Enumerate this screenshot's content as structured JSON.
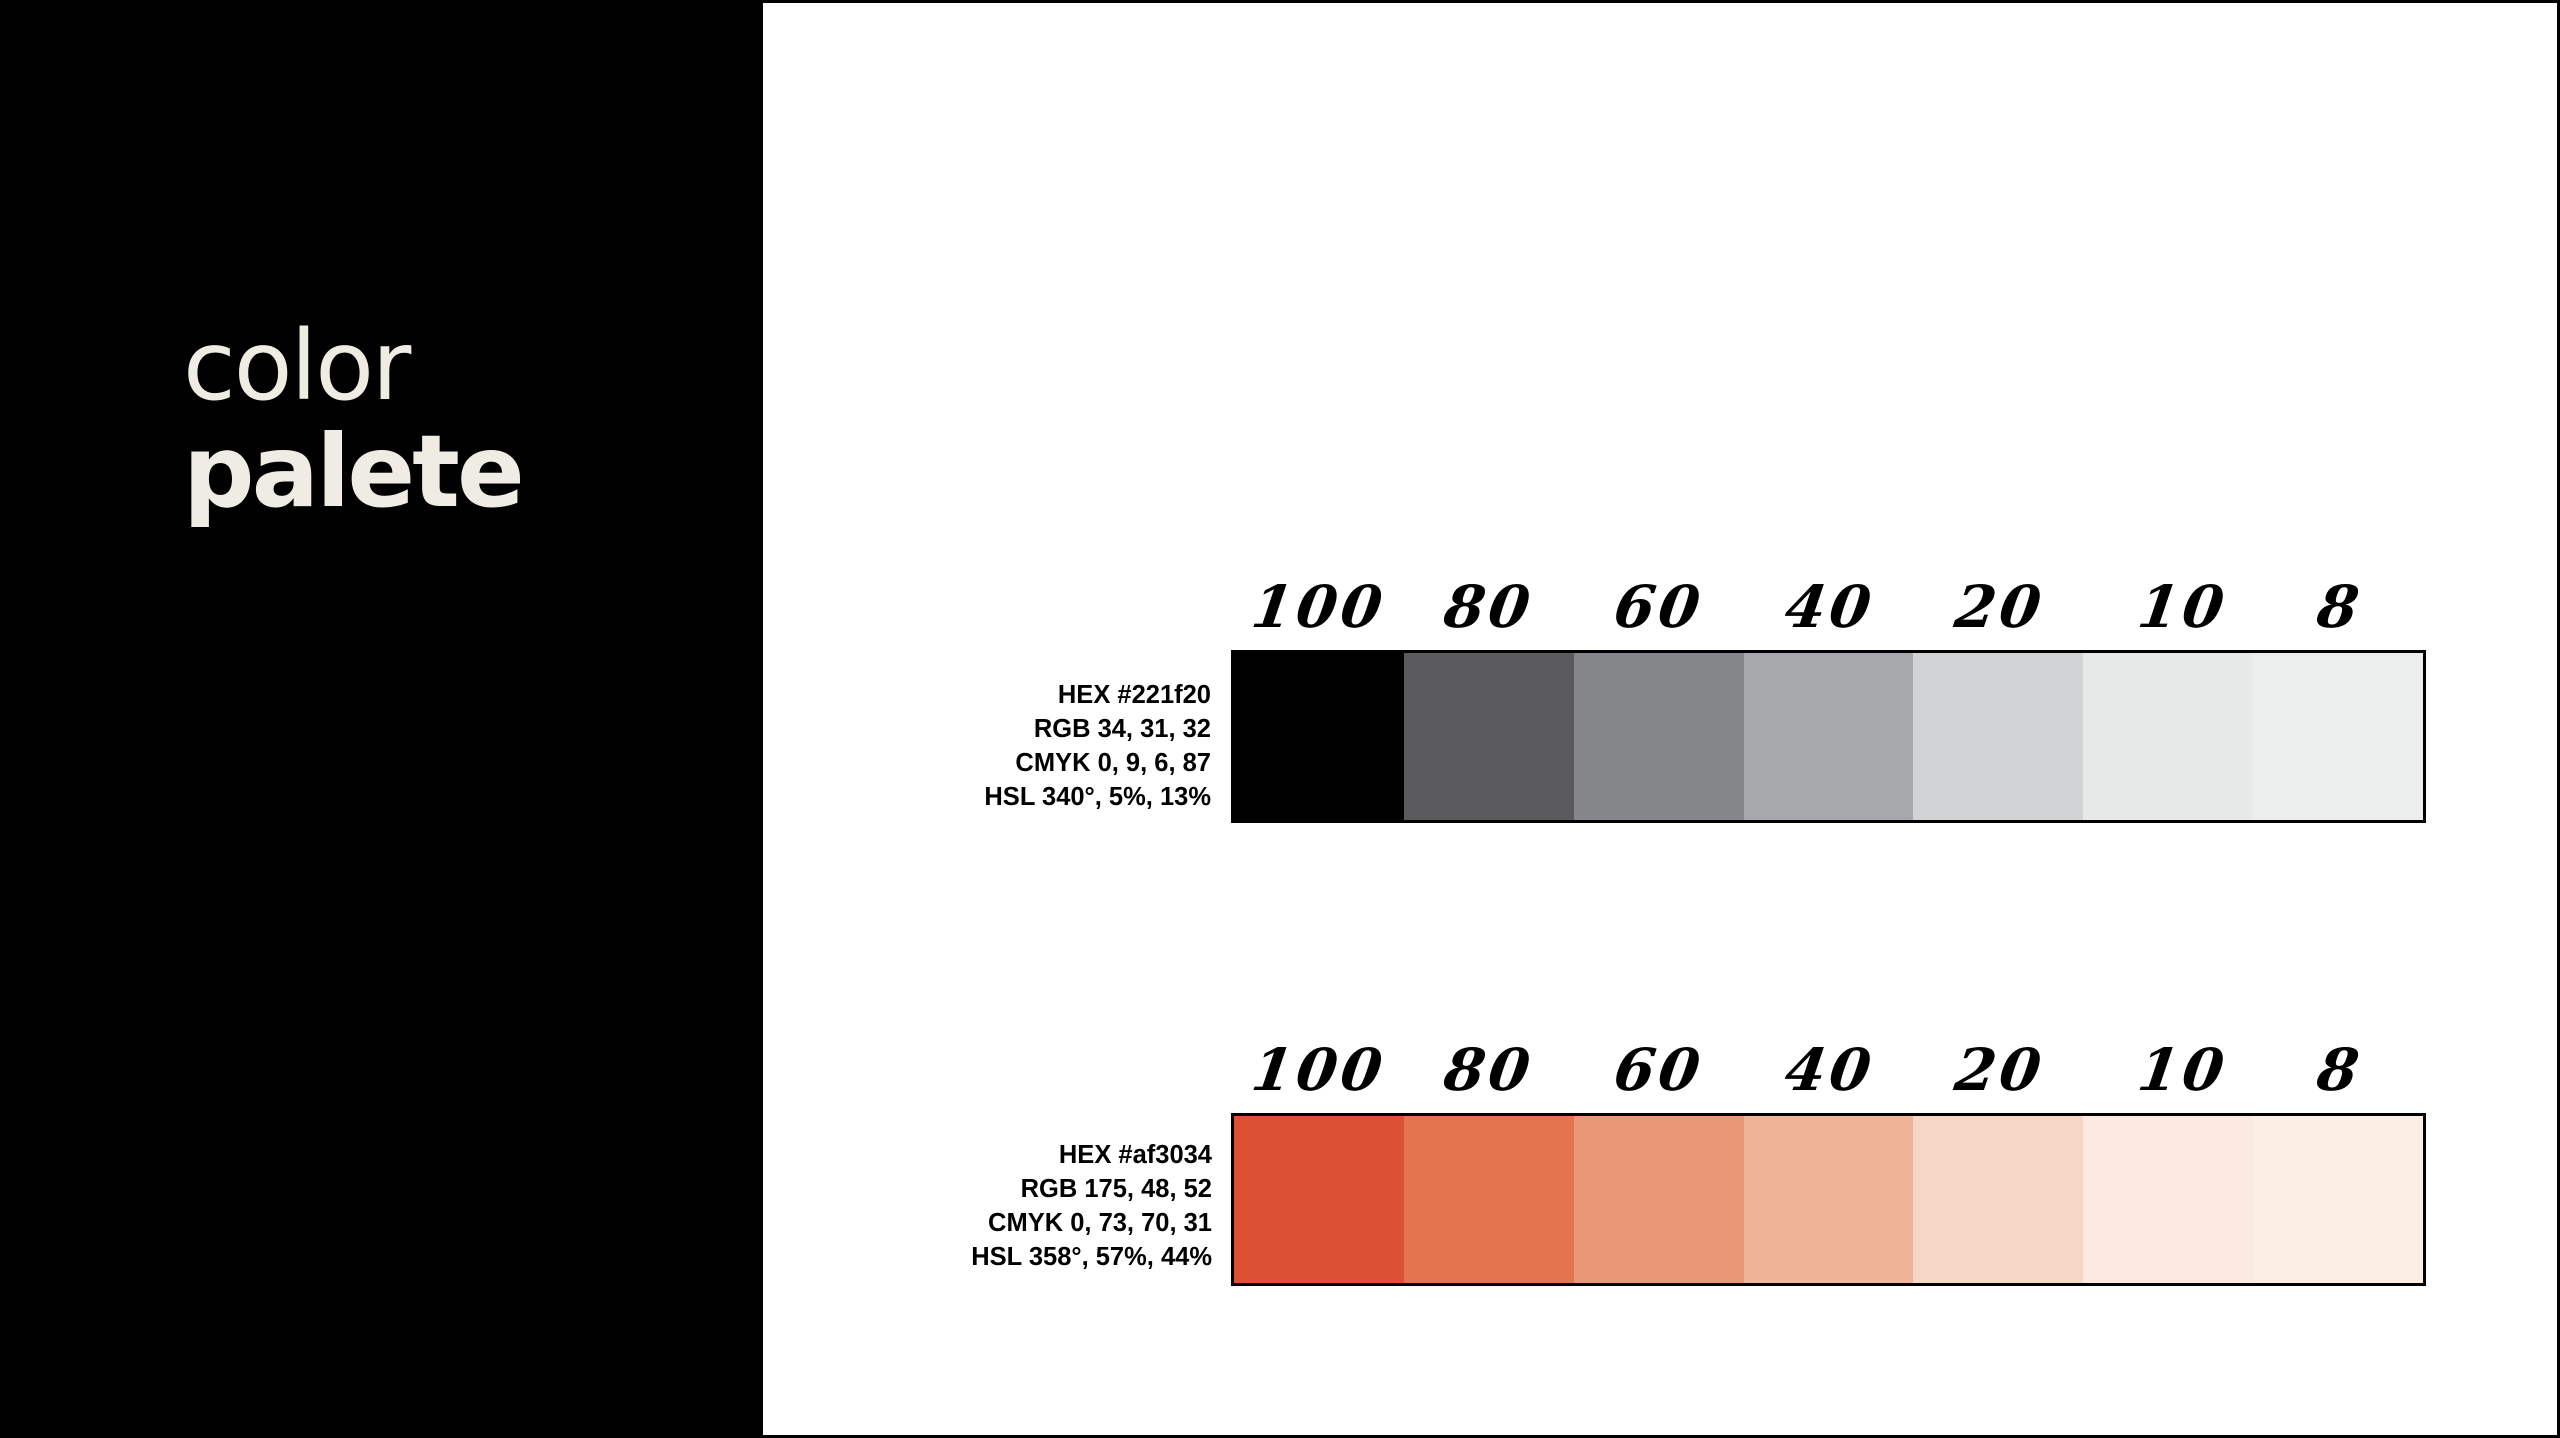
{
  "title": {
    "line1": "color",
    "line2": "palete"
  },
  "palettes": [
    {
      "id": "gray",
      "info": {
        "hex": "HEX #221f20",
        "rgb": "RGB 34, 31, 32",
        "cmyk": "CMYK 0, 9, 6, 87",
        "hsl": "HSL 340°, 5%, 13%"
      },
      "tints": [
        "100",
        "80",
        "60",
        "40",
        "20",
        "10",
        "8"
      ],
      "colors": [
        "#000000",
        "#5a5a5c",
        "#858689",
        "#a7a8ab",
        "#d2d3d5",
        "#e7e8e8",
        "#eceeed"
      ]
    },
    {
      "id": "red",
      "info": {
        "hex": "HEX #af3034",
        "rgb": "RGB 175, 48, 52",
        "cmyk": "CMYK 0, 73, 70, 31",
        "hsl": "HSL 358°, 57%, 44%"
      },
      "tints": [
        "100",
        "80",
        "60",
        "40",
        "20",
        "10",
        "8"
      ],
      "colors": [
        "#dc5035",
        "#e47450",
        "#e99776",
        "#efb397",
        "#f6d6c5",
        "#fce9df",
        "#fbeee5"
      ]
    }
  ]
}
